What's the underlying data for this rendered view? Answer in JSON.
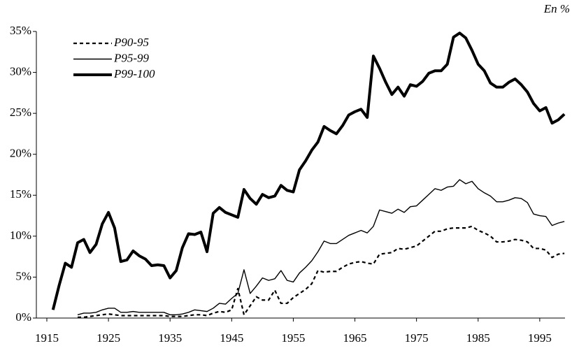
{
  "chart_data": {
    "type": "line",
    "annotation": "En %",
    "x": [
      1916,
      1917,
      1918,
      1919,
      1920,
      1921,
      1922,
      1923,
      1924,
      1925,
      1926,
      1927,
      1928,
      1929,
      1930,
      1931,
      1932,
      1933,
      1934,
      1935,
      1936,
      1937,
      1938,
      1939,
      1940,
      1941,
      1942,
      1943,
      1944,
      1945,
      1946,
      1947,
      1948,
      1949,
      1950,
      1951,
      1952,
      1953,
      1954,
      1955,
      1956,
      1957,
      1958,
      1959,
      1960,
      1961,
      1962,
      1963,
      1964,
      1965,
      1966,
      1967,
      1968,
      1969,
      1970,
      1971,
      1972,
      1973,
      1974,
      1975,
      1976,
      1977,
      1978,
      1979,
      1980,
      1981,
      1982,
      1983,
      1984,
      1985,
      1986,
      1987,
      1988,
      1989,
      1990,
      1991,
      1992,
      1993,
      1994,
      1995,
      1996,
      1997,
      1998,
      1999
    ],
    "series": [
      {
        "name": "P90-95",
        "color": "#000000",
        "dash": "dotted",
        "width": 2.2,
        "values": [
          null,
          null,
          null,
          null,
          0.1,
          0.1,
          0.2,
          0.3,
          0.4,
          0.5,
          0.4,
          0.3,
          0.3,
          0.3,
          0.3,
          0.3,
          0.3,
          0.3,
          0.3,
          0.2,
          0.2,
          0.2,
          0.3,
          0.4,
          0.4,
          0.3,
          0.6,
          0.8,
          0.7,
          1.0,
          3.6,
          0.4,
          1.5,
          2.6,
          2.2,
          2.2,
          3.4,
          1.8,
          1.8,
          2.5,
          3.0,
          3.5,
          4.2,
          5.8,
          5.6,
          5.7,
          5.7,
          6.2,
          6.6,
          6.8,
          6.9,
          6.7,
          6.6,
          7.8,
          7.9,
          8.0,
          8.5,
          8.4,
          8.6,
          8.8,
          9.4,
          10.0,
          10.6,
          10.6,
          10.9,
          11.0,
          11.0,
          11.0,
          11.2,
          10.7,
          10.4,
          10.0,
          9.3,
          9.3,
          9.4,
          9.6,
          9.5,
          9.3,
          8.5,
          8.5,
          8.3,
          7.4,
          7.8,
          7.9
        ]
      },
      {
        "name": "P95-99",
        "color": "#000000",
        "dash": "solid",
        "width": 1.4,
        "values": [
          null,
          null,
          null,
          null,
          0.4,
          0.6,
          0.6,
          0.7,
          1.0,
          1.2,
          1.2,
          0.7,
          0.7,
          0.8,
          0.7,
          0.7,
          0.7,
          0.7,
          0.7,
          0.4,
          0.4,
          0.5,
          0.7,
          1.0,
          0.9,
          0.8,
          1.2,
          1.8,
          1.7,
          2.4,
          3.0,
          5.9,
          3.0,
          3.9,
          4.9,
          4.6,
          4.8,
          5.8,
          4.6,
          4.4,
          5.5,
          6.2,
          7.0,
          8.1,
          9.4,
          9.1,
          9.1,
          9.6,
          10.1,
          10.4,
          10.7,
          10.4,
          11.2,
          13.2,
          13.0,
          12.8,
          13.3,
          12.9,
          13.6,
          13.7,
          14.4,
          15.1,
          15.8,
          15.6,
          16.0,
          16.1,
          16.9,
          16.4,
          16.7,
          15.8,
          15.3,
          14.9,
          14.2,
          14.2,
          14.4,
          14.7,
          14.6,
          14.1,
          12.7,
          12.5,
          12.4,
          11.3,
          11.6,
          11.8
        ]
      },
      {
        "name": "P99-100",
        "color": "#000000",
        "dash": "solid",
        "width": 4,
        "values": [
          1.0,
          4.0,
          6.7,
          6.2,
          9.2,
          9.6,
          8.0,
          9.0,
          11.5,
          12.9,
          11.0,
          6.9,
          7.1,
          8.2,
          7.6,
          7.2,
          6.4,
          6.5,
          6.4,
          4.9,
          5.8,
          8.6,
          10.3,
          10.2,
          10.5,
          8.1,
          12.8,
          13.5,
          12.9,
          12.6,
          12.3,
          15.7,
          14.6,
          13.9,
          15.1,
          14.7,
          14.9,
          16.2,
          15.6,
          15.4,
          18.1,
          19.2,
          20.5,
          21.5,
          23.4,
          22.9,
          22.5,
          23.5,
          24.8,
          25.2,
          25.5,
          24.5,
          32.0,
          30.5,
          28.8,
          27.3,
          28.2,
          27.1,
          28.5,
          28.3,
          28.9,
          29.9,
          30.2,
          30.2,
          31.0,
          34.3,
          34.8,
          34.2,
          32.7,
          31.0,
          30.2,
          28.7,
          28.2,
          28.2,
          28.8,
          29.2,
          28.5,
          27.6,
          26.2,
          25.3,
          25.7,
          23.8,
          24.2,
          24.9
        ]
      }
    ],
    "xlim": [
      1913.3,
      1999.1
    ],
    "xticks": [
      1915,
      1925,
      1935,
      1945,
      1955,
      1965,
      1975,
      1985,
      1995
    ],
    "ylim": [
      0,
      35
    ],
    "yticks": [
      {
        "value": 0,
        "label": "0%"
      },
      {
        "value": 5,
        "label": "5%"
      },
      {
        "value": 10,
        "label": "10%"
      },
      {
        "value": 15,
        "label": "15%"
      },
      {
        "value": 20,
        "label": "20%"
      },
      {
        "value": 25,
        "label": "25%"
      },
      {
        "value": 30,
        "label": "30%"
      },
      {
        "value": 35,
        "label": "35%"
      }
    ],
    "legend": "upper left",
    "grid": false
  }
}
